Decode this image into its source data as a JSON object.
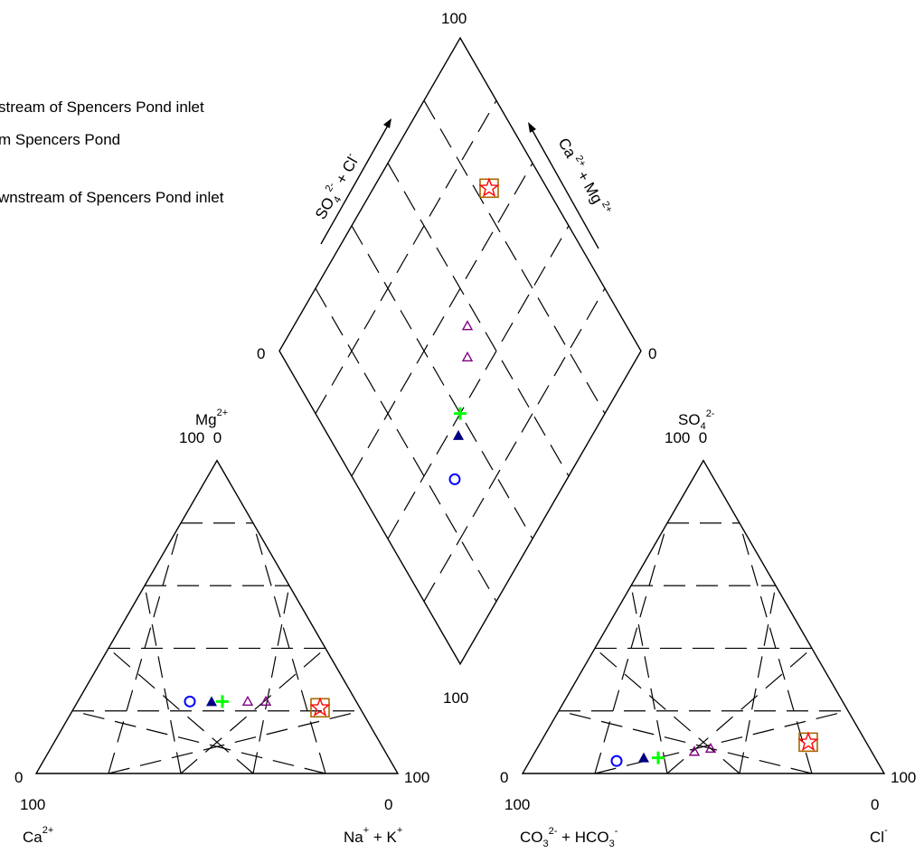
{
  "chart_data": {
    "type": "scatter",
    "subtype": "piper-diagram",
    "legend": {
      "placement": "top-left (partially cut off at left edge)",
      "entries": [
        "stream of Spencers Pond inlet",
        "m Spencers Pond",
        "wnstream of Spencers Pond inlet"
      ]
    },
    "cation_triangle": {
      "top": {
        "main": "Mg",
        "sup": "2+"
      },
      "top_scale": "100  0",
      "left_axis_end": "0",
      "right_axis_end": "100",
      "bottom_left_value": "100",
      "bottom_right_value": "0",
      "bottom_left": {
        "main": "Ca",
        "sup": "2+"
      },
      "bottom_right": {
        "parts": [
          [
            "Na",
            "+"
          ],
          [
            " + K",
            "+"
          ]
        ]
      }
    },
    "anion_triangle": {
      "top": {
        "main": "SO",
        "sub": "4",
        "sup": "2-"
      },
      "top_scale": "100  0",
      "left_axis_end": "0",
      "right_axis_end": "100",
      "bottom_left_value": "100",
      "bottom_right_value": "0",
      "bottom_left": {
        "text": "CO3 2- + HCO3 -"
      },
      "bottom_right": {
        "main": "Cl",
        "sup": "-"
      }
    },
    "diamond": {
      "top_value": "100",
      "left_value": "0",
      "right_value": "0",
      "bottom_value": "100",
      "left_axis": {
        "text": "SO4 2- + Cl -"
      },
      "right_axis": {
        "text": "Ca 2+ + Mg 2+"
      }
    },
    "axes_unit": "percent of total milliequivalents",
    "grid": "dashed, 20% intervals",
    "samples": [
      {
        "marker": "circle-open",
        "color": "#0000ff",
        "cation": {
          "ca": 46,
          "mg": 23,
          "nak": 31
        },
        "anion": {
          "hco3": 72,
          "so4": 4,
          "cl": 24
        }
      },
      {
        "marker": "triangle-filled",
        "color": "#000080",
        "cation": {
          "ca": 40,
          "mg": 23,
          "nak": 37
        },
        "anion": {
          "hco3": 64,
          "so4": 5,
          "cl": 31
        }
      },
      {
        "marker": "plus",
        "color": "#00ff00",
        "cation": {
          "ca": 37,
          "mg": 23,
          "nak": 40
        },
        "anion": {
          "hco3": 60,
          "so4": 5,
          "cl": 35
        }
      },
      {
        "marker": "triangle-open",
        "color": "#800080",
        "cation": {
          "ca": 30,
          "mg": 23,
          "nak": 47
        },
        "anion": {
          "hco3": 49,
          "so4": 7,
          "cl": 44
        }
      },
      {
        "marker": "triangle-open",
        "color": "#800080",
        "cation": {
          "ca": 25,
          "mg": 23,
          "nak": 52
        },
        "anion": {
          "hco3": 44,
          "so4": 8,
          "cl": 48
        }
      },
      {
        "marker": "square-open",
        "color": "#aa6600",
        "cation": {
          "ca": 11,
          "mg": 21,
          "nak": 68
        },
        "anion": {
          "hco3": 16,
          "so4": 10,
          "cl": 74
        }
      },
      {
        "marker": "star-open",
        "color": "#ff0000",
        "cation": {
          "ca": 11,
          "mg": 21,
          "nak": 68
        },
        "anion": {
          "hco3": 16,
          "so4": 10,
          "cl": 74
        }
      }
    ]
  }
}
